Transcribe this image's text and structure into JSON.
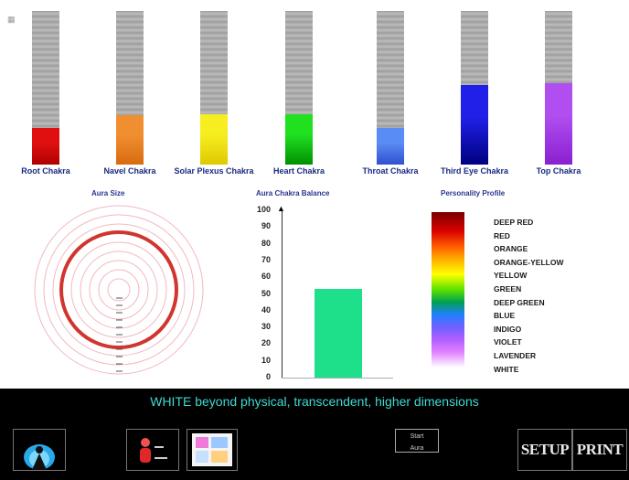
{
  "chakras": [
    {
      "label": "Root Chakra",
      "fraction": 0.24,
      "color": "#e01010",
      "color_dark": "#b00000"
    },
    {
      "label": "Navel Chakra",
      "fraction": 0.32,
      "color": "#f08f30",
      "color_dark": "#d86a10"
    },
    {
      "label": "Solar Plexus Chakra",
      "fraction": 0.33,
      "color": "#f6ee20",
      "color_dark": "#e0c800"
    },
    {
      "label": "Heart Chakra",
      "fraction": 0.33,
      "color": "#20e020",
      "color_dark": "#009000"
    },
    {
      "label": "Throat Chakra",
      "fraction": 0.24,
      "color": "#5a8cf5",
      "color_dark": "#3050d0"
    },
    {
      "label": "Third Eye Chakra",
      "fraction": 0.52,
      "color": "#2020e8",
      "color_dark": "#000080"
    },
    {
      "label": "Top Chakra",
      "fraction": 0.53,
      "color": "#b04ef0",
      "color_dark": "#8a20d0"
    }
  ],
  "sections": {
    "aura_size": "Aura Size",
    "balance": "Aura Chakra Balance",
    "profile": "Personality Profile"
  },
  "balance": {
    "ticks": [
      "100",
      "90",
      "80",
      "70",
      "60",
      "50",
      "40",
      "30",
      "20",
      "10",
      "0"
    ],
    "value": 53,
    "color": "#1fe08a"
  },
  "profile_labels": [
    "DEEP RED",
    "RED",
    "ORANGE",
    "ORANGE-YELLOW",
    "YELLOW",
    "GREEN",
    "DEEP GREEN",
    "BLUE",
    "INDIGO",
    "VIOLET",
    "LAVENDER",
    "WHITE"
  ],
  "status": "WHITE beyond physical, transcendent, higher dimensions",
  "buttons": {
    "small_line1": "Start",
    "small_line2": "Aura",
    "setup": "SETUP",
    "print": "PRINT"
  },
  "icons": {
    "aura": "aura-figure-icon",
    "person": "person-icon",
    "picture": "picture-icon"
  }
}
